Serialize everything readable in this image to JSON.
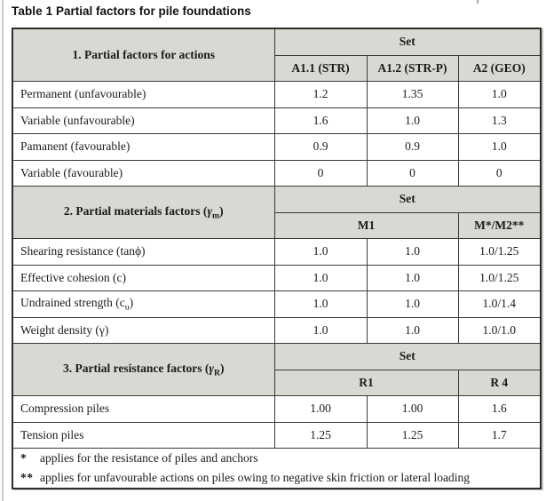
{
  "title": {
    "label": "Table 1",
    "rest": "Partial factors for pile foundations"
  },
  "table": {
    "set_label": "Set",
    "sections": [
      {
        "title_html": "1. Partial factors for actions",
        "col_headers": [
          "A1.1 (STR)",
          "A1.2 (STR-P)",
          "A2 (GEO)"
        ],
        "rows": [
          {
            "label_html": "Permanent (unfavourable)",
            "values": [
              "1.2",
              "1.35",
              "1.0"
            ]
          },
          {
            "label_html": "Variable (unfavourable)",
            "values": [
              "1.6",
              "1.0",
              "1.3"
            ]
          },
          {
            "label_html": "Pamanent (favourable)",
            "values": [
              "0.9",
              "0.9",
              "1.0"
            ]
          },
          {
            "label_html": "Variable (favourable)",
            "values": [
              "0",
              "0",
              "0"
            ]
          }
        ]
      },
      {
        "title_html": "2. Partial materials factors (<i>γ</i><sub>m</sub>)",
        "col_headers": [
          "M1",
          "M*/M2**"
        ],
        "rows": [
          {
            "label_html": "Shearing resistance (tanϕ)",
            "values": [
              "1.0",
              "1.0",
              "1.0/1.25"
            ]
          },
          {
            "label_html": "Effective cohesion (c)",
            "values": [
              "1.0",
              "1.0",
              "1.0/1.25"
            ]
          },
          {
            "label_html": "Undrained strength (c<sub>u</sub>)",
            "values": [
              "1.0",
              "1.0",
              "1.0/1.4"
            ]
          },
          {
            "label_html": "Weight density (γ)",
            "values": [
              "1.0",
              "1.0",
              "1.0/1.0"
            ]
          }
        ]
      },
      {
        "title_html": "3. Partial resistance factors (<i>γ</i><sub>R</sub>)",
        "col_headers": [
          "R1",
          "R 4"
        ],
        "rows": [
          {
            "label_html": "Compression piles",
            "values": [
              "1.00",
              "1.00",
              "1.6"
            ]
          },
          {
            "label_html": "Tension piles",
            "values": [
              "1.25",
              "1.25",
              "1.7"
            ]
          }
        ]
      }
    ],
    "footnotes": [
      {
        "marker": "*",
        "text": "applies for the resistance of piles and anchors"
      },
      {
        "marker": "**",
        "text": "applies for unfavourable actions on piles owing to negative skin friction or lateral loading"
      }
    ]
  },
  "colors": {
    "header_bg": "#d9d8d2",
    "border": "#3a3a38",
    "text": "#1b1b19"
  }
}
